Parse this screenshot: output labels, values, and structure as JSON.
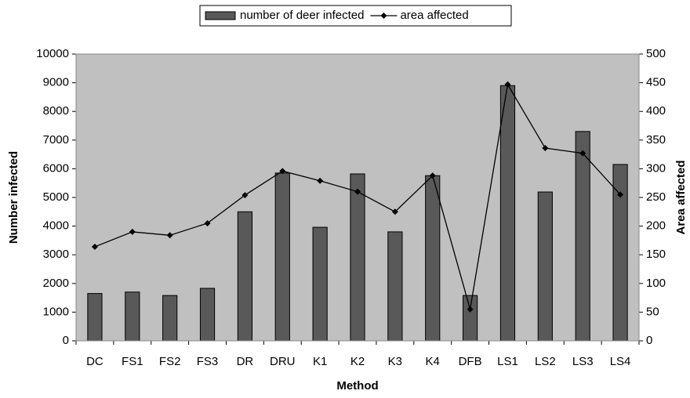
{
  "chart_data": {
    "type": "bar-line",
    "x_label": "Method",
    "y_label": "Number infected",
    "y2_label": "Area affected",
    "categories": [
      "DC",
      "FS1",
      "FS2",
      "FS3",
      "DR",
      "DRU",
      "K1",
      "K2",
      "K3",
      "K4",
      "DFB",
      "LS1",
      "LS2",
      "LS3",
      "LS4"
    ],
    "series": [
      {
        "name": "number of deer infected",
        "type": "bar",
        "color": "#595959",
        "values": [
          1650,
          1700,
          1580,
          1830,
          4500,
          5850,
          3960,
          5820,
          3800,
          5760,
          1580,
          8900,
          5190,
          7300,
          6150
        ]
      },
      {
        "name": "area affected",
        "type": "line",
        "axis": "y2",
        "color": "#000000",
        "values": [
          164,
          190,
          184,
          205,
          254,
          296,
          279,
          260,
          225,
          288,
          55,
          447,
          336,
          327,
          255
        ]
      }
    ],
    "ylim": [
      0,
      10000
    ],
    "yticks": [
      0,
      1000,
      2000,
      3000,
      4000,
      5000,
      6000,
      7000,
      8000,
      9000,
      10000
    ],
    "y2lim": [
      0,
      500
    ],
    "y2ticks": [
      0,
      50,
      100,
      150,
      200,
      250,
      300,
      350,
      400,
      450,
      500
    ],
    "grid": false,
    "legend": "top"
  }
}
